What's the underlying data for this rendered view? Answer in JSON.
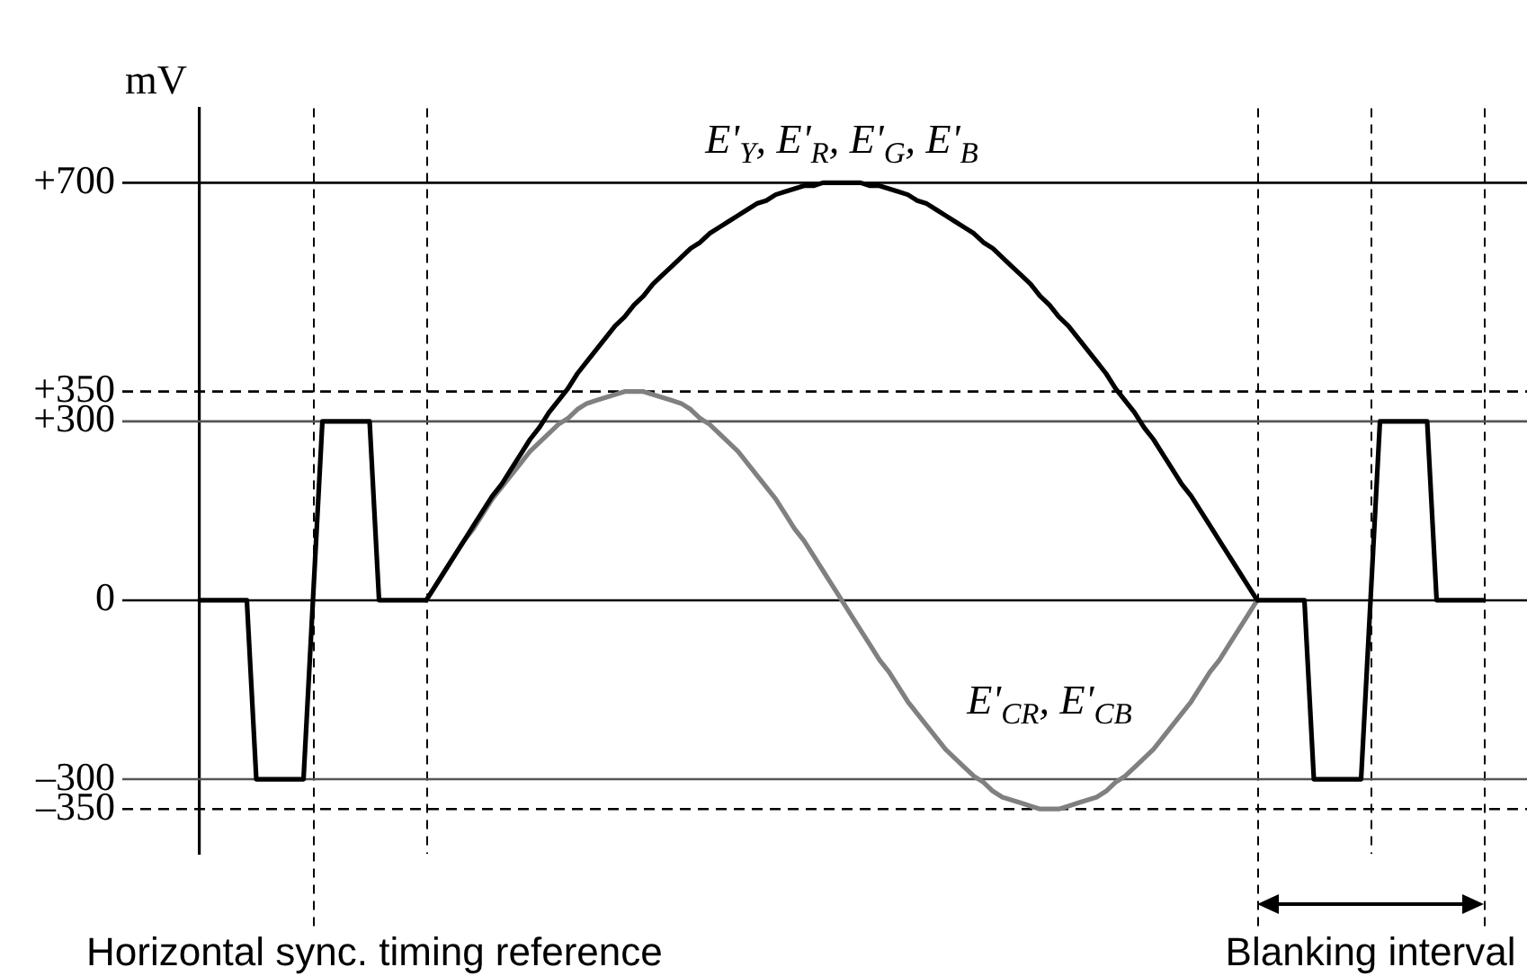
{
  "chart_data": {
    "type": "line",
    "ylabel": "mV",
    "categories": [
      null,
      null,
      null,
      null,
      null,
      null,
      null,
      null,
      null,
      null,
      null,
      null,
      null,
      null,
      null,
      null,
      null,
      null,
      null,
      null,
      null,
      null,
      null,
      null,
      null,
      null,
      null,
      null,
      null,
      null,
      null,
      null,
      null,
      null,
      null,
      null,
      null,
      null,
      null,
      null,
      null,
      null,
      null,
      null,
      null,
      null,
      null,
      null,
      null,
      null,
      null,
      null,
      null,
      null,
      null,
      null,
      null,
      null,
      null,
      null,
      null,
      null,
      null,
      null,
      null,
      null,
      null,
      null,
      null,
      null,
      null,
      null,
      null,
      null,
      null,
      null,
      null,
      null,
      null,
      null,
      null,
      null,
      null,
      null,
      null,
      null,
      null,
      null,
      null,
      null,
      null,
      null,
      null,
      null,
      null,
      null,
      null,
      null,
      null,
      null,
      null,
      null,
      null,
      null,
      null,
      null,
      null,
      null,
      null,
      null,
      null,
      null,
      null,
      null,
      null,
      null,
      null,
      null,
      null,
      null,
      null,
      null,
      null,
      null,
      null,
      null,
      null,
      null,
      null,
      null,
      null,
      null,
      null,
      null,
      null,
      null,
      null
    ],
    "series": [
      {
        "name": "E'$_{Y}$, E'$_{R}$, E'$_{G}$, E'$_{B}$",
        "color": "#000000",
        "values": [
          0,
          0,
          0,
          0,
          0,
          0,
          -300,
          -300,
          -300,
          -300,
          -300,
          -300,
          0,
          300,
          300,
          300,
          300,
          300,
          300,
          0,
          0,
          0,
          0,
          0,
          0,
          25,
          50,
          75,
          100,
          125,
          150,
          175,
          195,
          220,
          245,
          270,
          290,
          315,
          335,
          355,
          380,
          400,
          420,
          440,
          460,
          475,
          495,
          510,
          530,
          545,
          560,
          575,
          590,
          600,
          615,
          625,
          635,
          645,
          655,
          665,
          670,
          680,
          685,
          690,
          695,
          695,
          700,
          700,
          700,
          700,
          700,
          695,
          695,
          690,
          685,
          680,
          670,
          665,
          655,
          645,
          635,
          625,
          615,
          600,
          590,
          575,
          560,
          545,
          530,
          510,
          495,
          475,
          460,
          440,
          420,
          400,
          380,
          355,
          335,
          315,
          290,
          270,
          245,
          220,
          195,
          175,
          150,
          125,
          100,
          75,
          50,
          25,
          0,
          0,
          0,
          0,
          0,
          0,
          -300,
          -300,
          -300,
          -300,
          -300,
          -300,
          0,
          300,
          300,
          300,
          300,
          300,
          300,
          0,
          0,
          0,
          0,
          0,
          0
        ]
      },
      {
        "name": "E'$_{CR}$, E'$_{CB}$",
        "color": "#808080",
        "values": [
          null,
          null,
          null,
          null,
          null,
          null,
          null,
          null,
          null,
          null,
          null,
          null,
          null,
          null,
          null,
          null,
          null,
          null,
          null,
          null,
          null,
          null,
          null,
          null,
          0,
          25,
          50,
          75,
          100,
          120,
          145,
          170,
          190,
          210,
          230,
          250,
          265,
          280,
          295,
          305,
          320,
          330,
          335,
          340,
          345,
          350,
          350,
          350,
          345,
          340,
          335,
          330,
          320,
          305,
          295,
          280,
          265,
          250,
          230,
          210,
          190,
          170,
          145,
          120,
          100,
          75,
          50,
          25,
          0,
          -25,
          -50,
          -75,
          -100,
          -120,
          -145,
          -170,
          -190,
          -210,
          -230,
          -250,
          -265,
          -280,
          -295,
          -305,
          -320,
          -330,
          -335,
          -340,
          -345,
          -350,
          -350,
          -350,
          -345,
          -340,
          -335,
          -330,
          -320,
          -305,
          -295,
          -280,
          -265,
          -250,
          -230,
          -210,
          -190,
          -170,
          -145,
          -120,
          -100,
          -75,
          -50,
          -25,
          0,
          null,
          null,
          null,
          null,
          null,
          null,
          null,
          null,
          null,
          null,
          null,
          null,
          null,
          null,
          null,
          null,
          null,
          null,
          null,
          null,
          null,
          null,
          null,
          null
        ]
      }
    ],
    "ylim": [
      -425,
      825
    ],
    "yticks": [
      {
        "value": -350,
        "label": "–350"
      },
      {
        "value": -300,
        "label": "–300"
      },
      0,
      {
        "value": 300,
        "label": "+300"
      },
      {
        "value": 350,
        "label": "+350"
      },
      {
        "value": 700,
        "label": "+700"
      }
    ],
    "tick_labels": "y",
    "marker": "none",
    "ref_lines": [
      {
        "axis": "y",
        "value": 700,
        "color": "#000000",
        "line_style": "solid"
      },
      {
        "axis": "y",
        "value": 350,
        "color": "#000000",
        "line_style": "dashed"
      },
      {
        "axis": "y",
        "value": 300,
        "color": "#555555",
        "line_style": "solid"
      },
      {
        "axis": "y",
        "value": 0,
        "color": "#000000",
        "line_style": "solid"
      },
      {
        "axis": "y",
        "value": -300,
        "color": "#555555",
        "line_style": "solid"
      },
      {
        "axis": "y",
        "value": -350,
        "color": "#000000",
        "line_style": "dashed"
      }
    ],
    "annotations": [
      "Horizontal sync. timing reference",
      "Blanking interval"
    ]
  }
}
